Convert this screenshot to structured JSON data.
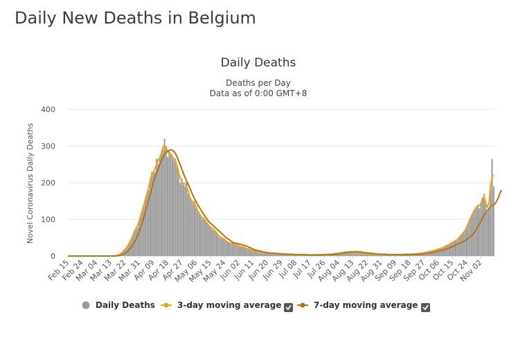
{
  "page": {
    "heading": "Daily New Deaths in Belgium"
  },
  "chart_data": {
    "type": "bar",
    "title": "Daily Deaths",
    "subtitle": "Deaths per Day",
    "subtitle2": "Data as of 0:00 GMT+8",
    "ylabel": "Novel Coronavirus Daily Deaths",
    "xlabel": "",
    "ylim": [
      0,
      400
    ],
    "yticks": [
      0,
      100,
      200,
      300,
      400
    ],
    "x_tick_labels": [
      "Feb 15",
      "Feb 24",
      "Mar 04",
      "Mar 13",
      "Mar 22",
      "Mar 31",
      "Apr 09",
      "Apr 18",
      "Apr 27",
      "May 06",
      "May 15",
      "May 24",
      "Jun 02",
      "Jun 11",
      "Jun 20",
      "Jun 29",
      "Jul 08",
      "Jul 17",
      "Jul 26",
      "Aug 04",
      "Aug 13",
      "Aug 22",
      "Aug 31",
      "Sep 09",
      "Sep 18",
      "Sep 27",
      "Oct 06",
      "Oct 15",
      "Oct 24",
      "Nov 02"
    ],
    "x_tick_step_days": 9,
    "grid": true,
    "legend_position": "bottom",
    "colors": {
      "bars": "#999999",
      "ma3": "#f0a11f",
      "ma7": "#b5740d",
      "grid": "#e6e6e6"
    },
    "legend": [
      {
        "name": "Daily Deaths",
        "marker": "circle",
        "color": "#999999",
        "checkbox": false
      },
      {
        "name": "3-day moving average",
        "marker": "line",
        "color": "#f0a11f",
        "checkbox": true
      },
      {
        "name": "7-day moving average",
        "marker": "line",
        "color": "#b5740d",
        "checkbox": true
      }
    ],
    "series": [
      {
        "name": "Daily Deaths",
        "type": "bar",
        "values": [
          0,
          0,
          0,
          0,
          0,
          0,
          0,
          0,
          0,
          0,
          0,
          0,
          0,
          0,
          0,
          0,
          0,
          0,
          0,
          0,
          0,
          0,
          0,
          0,
          0,
          0,
          0,
          0,
          1,
          0,
          1,
          3,
          2,
          5,
          10,
          13,
          16,
          24,
          30,
          36,
          47,
          55,
          70,
          76,
          78,
          97,
          112,
          125,
          140,
          155,
          175,
          180,
          210,
          230,
          225,
          230,
          265,
          250,
          270,
          280,
          290,
          320,
          300,
          270,
          285,
          280,
          270,
          260,
          265,
          245,
          230,
          200,
          210,
          195,
          190,
          205,
          170,
          160,
          150,
          145,
          150,
          130,
          125,
          115,
          110,
          100,
          105,
          98,
          90,
          85,
          80,
          72,
          75,
          70,
          65,
          55,
          50,
          48,
          50,
          45,
          40,
          38,
          36,
          34,
          35,
          32,
          30,
          30,
          28,
          26,
          25,
          24,
          22,
          20,
          19,
          18,
          16,
          15,
          14,
          13,
          12,
          11,
          10,
          10,
          9,
          9,
          8,
          8,
          8,
          7,
          7,
          7,
          6,
          6,
          6,
          6,
          5,
          5,
          5,
          5,
          5,
          4,
          4,
          4,
          4,
          4,
          4,
          4,
          3,
          3,
          3,
          3,
          3,
          3,
          3,
          3,
          3,
          3,
          3,
          4,
          4,
          4,
          4,
          4,
          4,
          5,
          5,
          5,
          6,
          7,
          7,
          8,
          9,
          9,
          10,
          11,
          11,
          11,
          12,
          12,
          11,
          10,
          10,
          9,
          9,
          8,
          8,
          7,
          7,
          6,
          6,
          5,
          5,
          5,
          5,
          5,
          5,
          4,
          4,
          4,
          4,
          4,
          4,
          4,
          4,
          4,
          4,
          4,
          4,
          4,
          4,
          4,
          4,
          5,
          5,
          5,
          5,
          5,
          5,
          6,
          6,
          7,
          7,
          8,
          8,
          9,
          10,
          11,
          12,
          13,
          14,
          15,
          16,
          18,
          19,
          20,
          22,
          22,
          25,
          28,
          30,
          32,
          35,
          38,
          40,
          42,
          45,
          50,
          55,
          60,
          65,
          70,
          80,
          90,
          100,
          110,
          120,
          125,
          135,
          140,
          130,
          145,
          160,
          170,
          150,
          120,
          130,
          180,
          265,
          190
        ]
      },
      {
        "name": "3-day moving average",
        "type": "line",
        "values": [
          0,
          0,
          0,
          0,
          0,
          0,
          0,
          0,
          0,
          0,
          0,
          0,
          0,
          0,
          0,
          0,
          0,
          0,
          0,
          0,
          0,
          0,
          0,
          0,
          0,
          0,
          0,
          0,
          0,
          1,
          1,
          2,
          3,
          6,
          9,
          13,
          18,
          23,
          30,
          38,
          46,
          57,
          67,
          75,
          84,
          96,
          111,
          126,
          140,
          157,
          170,
          188,
          207,
          222,
          228,
          240,
          248,
          262,
          267,
          280,
          297,
          303,
          297,
          285,
          278,
          278,
          270,
          265,
          257,
          247,
          225,
          215,
          202,
          198,
          197,
          188,
          178,
          160,
          152,
          148,
          142,
          135,
          123,
          117,
          108,
          105,
          101,
          94,
          90,
          84,
          79,
          76,
          72,
          68,
          63,
          58,
          53,
          50,
          48,
          45,
          41,
          38,
          36,
          35,
          34,
          32,
          31,
          29,
          28,
          26,
          25,
          24,
          22,
          20,
          19,
          18,
          16,
          15,
          14,
          13,
          12,
          11,
          10,
          10,
          9,
          9,
          8,
          8,
          8,
          7,
          7,
          7,
          6,
          6,
          6,
          6,
          5,
          5,
          5,
          5,
          5,
          4,
          4,
          4,
          4,
          4,
          4,
          4,
          3,
          3,
          3,
          3,
          3,
          3,
          3,
          3,
          3,
          3,
          3,
          4,
          4,
          4,
          4,
          4,
          4,
          5,
          5,
          5,
          6,
          7,
          7,
          8,
          9,
          9,
          10,
          11,
          11,
          11,
          12,
          12,
          11,
          10,
          10,
          9,
          9,
          8,
          8,
          7,
          7,
          6,
          6,
          5,
          5,
          5,
          5,
          5,
          5,
          4,
          4,
          4,
          4,
          4,
          4,
          4,
          4,
          4,
          4,
          4,
          4,
          4,
          4,
          4,
          4,
          5,
          5,
          5,
          5,
          5,
          5,
          6,
          6,
          7,
          7,
          8,
          8,
          9,
          10,
          11,
          12,
          13,
          14,
          15,
          16,
          18,
          19,
          20,
          22,
          22,
          25,
          28,
          30,
          32,
          35,
          38,
          40,
          42,
          45,
          50,
          55,
          60,
          65,
          70,
          80,
          90,
          100,
          110,
          118,
          127,
          133,
          135,
          138,
          145,
          158,
          160,
          147,
          133,
          143,
          192,
          215,
          220
        ]
      },
      {
        "name": "7-day moving average",
        "type": "line",
        "values": [
          0,
          0,
          0,
          0,
          0,
          0,
          0,
          0,
          0,
          0,
          0,
          0,
          0,
          0,
          0,
          0,
          0,
          0,
          0,
          0,
          0,
          0,
          0,
          0,
          0,
          0,
          0,
          0,
          0,
          0,
          0,
          1,
          1,
          2,
          3,
          5,
          7,
          10,
          14,
          19,
          24,
          31,
          38,
          46,
          56,
          66,
          78,
          92,
          107,
          122,
          137,
          153,
          168,
          185,
          202,
          215,
          226,
          238,
          250,
          260,
          268,
          278,
          283,
          285,
          288,
          290,
          288,
          285,
          279,
          270,
          258,
          248,
          236,
          225,
          214,
          205,
          195,
          186,
          175,
          165,
          156,
          148,
          140,
          133,
          126,
          119,
          112,
          106,
          100,
          94,
          90,
          86,
          82,
          78,
          74,
          70,
          66,
          62,
          58,
          54,
          50,
          47,
          44,
          41,
          38,
          36,
          35,
          34,
          33,
          32,
          31,
          29,
          28,
          27,
          25,
          23,
          21,
          19,
          17,
          16,
          15,
          14,
          13,
          12,
          11,
          10,
          9,
          9,
          8,
          8,
          8,
          7,
          7,
          7,
          6,
          6,
          6,
          6,
          5,
          5,
          5,
          5,
          5,
          4,
          4,
          4,
          4,
          4,
          4,
          4,
          4,
          3,
          3,
          3,
          3,
          3,
          3,
          3,
          3,
          3,
          3,
          3,
          4,
          4,
          4,
          4,
          4,
          4,
          5,
          5,
          5,
          6,
          6,
          7,
          8,
          8,
          9,
          10,
          10,
          11,
          11,
          12,
          12,
          12,
          11,
          11,
          10,
          10,
          9,
          9,
          8,
          8,
          7,
          7,
          6,
          6,
          5,
          5,
          5,
          5,
          5,
          5,
          4,
          4,
          4,
          4,
          4,
          4,
          4,
          4,
          4,
          4,
          4,
          4,
          4,
          4,
          4,
          4,
          5,
          5,
          5,
          5,
          5,
          5,
          6,
          6,
          7,
          7,
          8,
          8,
          9,
          10,
          11,
          12,
          13,
          14,
          15,
          16,
          18,
          19,
          20,
          22,
          24,
          26,
          28,
          30,
          32,
          34,
          36,
          38,
          40,
          42,
          45,
          48,
          52,
          56,
          60,
          66,
          72,
          80,
          88,
          96,
          104,
          112,
          118,
          124,
          130,
          135,
          138,
          140,
          143,
          150,
          160,
          172,
          180
        ]
      }
    ]
  }
}
